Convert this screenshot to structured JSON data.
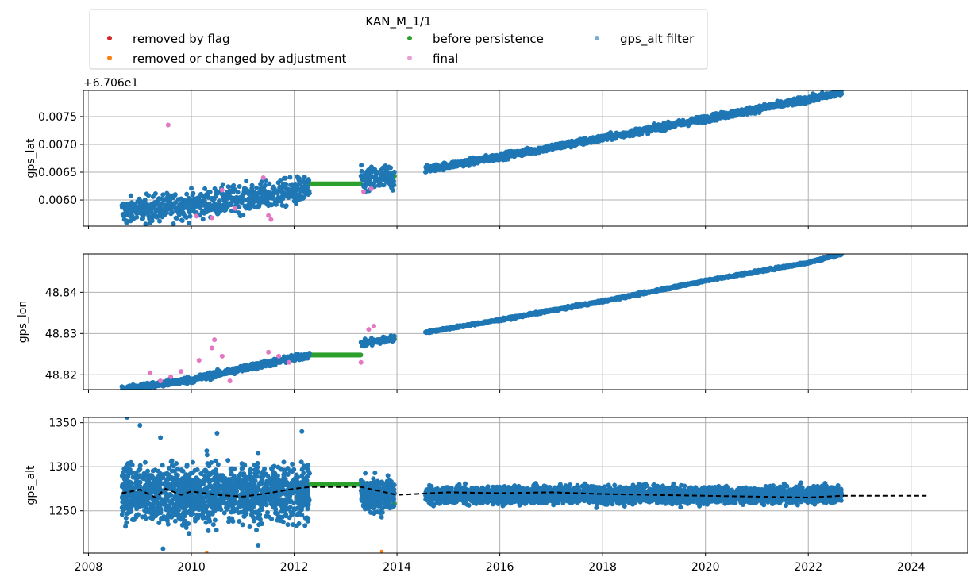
{
  "legend": {
    "title": "KAN_M_1/1",
    "entries": [
      {
        "label": "removed by flag",
        "color": "#d62728"
      },
      {
        "label": "removed or changed by adjustment",
        "color": "#ff7f0e"
      },
      {
        "label": "before persistence",
        "color": "#2ca02c"
      },
      {
        "label": "final",
        "color": "#e377c2"
      },
      {
        "label": "gps_alt filter",
        "color": "#1f77b4"
      }
    ]
  },
  "colors": {
    "flag": "#d62728",
    "adjustment": "#ff7f0e",
    "persistence": "#2ca02c",
    "final": "#e377c2",
    "filter": "#1f77b4",
    "grid": "#b0b0b0",
    "trend": "#000000"
  },
  "chart_data": [
    {
      "type": "scatter",
      "ylabel": "gps_lat",
      "offset_label": "+6.706e1",
      "xlim": [
        2007.9,
        2025.1
      ],
      "ylim": [
        0.00553,
        0.00797
      ],
      "yticks": [
        0.006,
        0.0065,
        0.007,
        0.0075
      ],
      "ytick_labels": [
        "0.0060",
        "0.0065",
        "0.0070",
        "0.0075"
      ],
      "xticks": [
        2008,
        2010,
        2012,
        2014,
        2016,
        2018,
        2020,
        2022,
        2024
      ],
      "grid": true,
      "series": [
        {
          "name": "final",
          "x": [
            2009.55,
            2010.1,
            2010.4,
            2010.6,
            2010.85,
            2011.4,
            2011.5,
            2011.55,
            2013.35,
            2013.5
          ],
          "y": [
            0.00735,
            0.00571,
            0.00568,
            0.00618,
            0.00585,
            0.0064,
            0.00572,
            0.00565,
            0.00615,
            0.0062
          ]
        },
        {
          "name": "before persistence",
          "x": [
            2012.3,
            2013.3,
            2013.95
          ],
          "y": [
            0.00629,
            0.00629,
            0.00643
          ]
        },
        {
          "name": "gps_alt filter",
          "x": [
            2008.65,
            2009.3,
            2010.0,
            2010.7,
            2011.4,
            2012.1,
            2012.3,
            2013.35,
            2013.9,
            2014.55,
            2016.0,
            2018.0,
            2020.0,
            2022.0,
            2022.65
          ],
          "y": [
            0.00578,
            0.00585,
            0.00591,
            0.00599,
            0.00607,
            0.00617,
            0.0062,
            0.00633,
            0.00641,
            0.00655,
            0.00678,
            0.00711,
            0.00746,
            0.00781,
            0.00793
          ]
        }
      ]
    },
    {
      "type": "scatter",
      "ylabel": "gps_lon",
      "xlim": [
        2007.9,
        2025.1
      ],
      "ylim": [
        48.8164,
        48.8493
      ],
      "yticks": [
        48.82,
        48.83,
        48.84
      ],
      "ytick_labels": [
        "48.82",
        "48.83",
        "48.84"
      ],
      "xticks": [
        2008,
        2010,
        2012,
        2014,
        2016,
        2018,
        2020,
        2022,
        2024
      ],
      "grid": true,
      "series": [
        {
          "name": "final",
          "x": [
            2009.2,
            2009.4,
            2009.6,
            2009.8,
            2010.15,
            2010.4,
            2010.45,
            2010.6,
            2010.75,
            2011.5,
            2011.7,
            2011.9,
            2013.3,
            2013.45,
            2013.55
          ],
          "y": [
            48.8205,
            48.8185,
            48.8195,
            48.8208,
            48.8235,
            48.8265,
            48.8285,
            48.8245,
            48.8185,
            48.8255,
            48.8245,
            48.823,
            48.823,
            48.831,
            48.8318
          ]
        },
        {
          "name": "before persistence",
          "x": [
            2012.3,
            2013.3,
            2013.95
          ],
          "y": [
            48.8248,
            48.8248,
            48.8287
          ]
        },
        {
          "name": "gps_alt filter",
          "x": [
            2008.65,
            2010.0,
            2011.0,
            2012.3,
            2013.3,
            2013.9,
            2014.55,
            2016.0,
            2018.0,
            2020.0,
            2022.0,
            2022.65
          ],
          "y": [
            48.8164,
            48.8188,
            48.8215,
            48.8248,
            48.8275,
            48.8287,
            48.8303,
            48.8333,
            48.8378,
            48.8428,
            48.8472,
            48.8493
          ]
        }
      ]
    },
    {
      "type": "scatter",
      "ylabel": "gps_alt",
      "xlim": [
        2007.9,
        2025.1
      ],
      "ylim": [
        1202,
        1356
      ],
      "yticks": [
        1250,
        1300,
        1350
      ],
      "ytick_labels": [
        "1250",
        "1300",
        "1350"
      ],
      "xticks": [
        2008,
        2010,
        2012,
        2014,
        2016,
        2018,
        2020,
        2022,
        2024
      ],
      "xtick_labels": [
        "2008",
        "2010",
        "2012",
        "2014",
        "2016",
        "2018",
        "2020",
        "2022",
        "2024"
      ],
      "grid": true,
      "series": [
        {
          "name": "before persistence",
          "x": [
            2012.3,
            2013.3,
            2013.95
          ],
          "y": [
            1280,
            1280,
            1258
          ]
        },
        {
          "name": "removed or changed by adjustment",
          "x": [
            2010.3,
            2013.7
          ],
          "y": [
            1203,
            1204
          ]
        },
        {
          "name": "gps_alt filter",
          "segments": [
            {
              "x": [
                2008.65,
                2012.3
              ],
              "center": 1270,
              "spread": 38
            },
            {
              "x": [
                2013.3,
                2013.95
              ],
              "center": 1268,
              "spread": 22
            },
            {
              "x": [
                2014.55,
                2022.65
              ],
              "center": 1268,
              "spread": 11
            }
          ],
          "outliers": {
            "x": [
              2008.75,
              2009.0,
              2009.4,
              2010.3,
              2010.5,
              2011.3,
              2012.15,
              2009.45,
              2011.3,
              2012.05
            ],
            "y": [
              1356,
              1347,
              1333,
              1318,
              1338,
              1315,
              1340,
              1207,
              1211,
              1233
            ]
          }
        },
        {
          "name": "trend",
          "style": "dashed",
          "x": [
            2008.65,
            2009.0,
            2009.3,
            2009.5,
            2009.8,
            2010.0,
            2010.5,
            2011.0,
            2011.5,
            2012.0,
            2012.3,
            2013.3,
            2014.0,
            2015.0,
            2016.0,
            2017.0,
            2018.0,
            2019.0,
            2020.0,
            2021.0,
            2022.0,
            2022.65,
            2024.3
          ],
          "y": [
            1270,
            1274,
            1265,
            1275,
            1268,
            1272,
            1268,
            1266,
            1270,
            1275,
            1277,
            1277,
            1268,
            1271,
            1270,
            1271,
            1269,
            1268,
            1267,
            1266,
            1265,
            1267,
            1267
          ]
        }
      ]
    }
  ]
}
